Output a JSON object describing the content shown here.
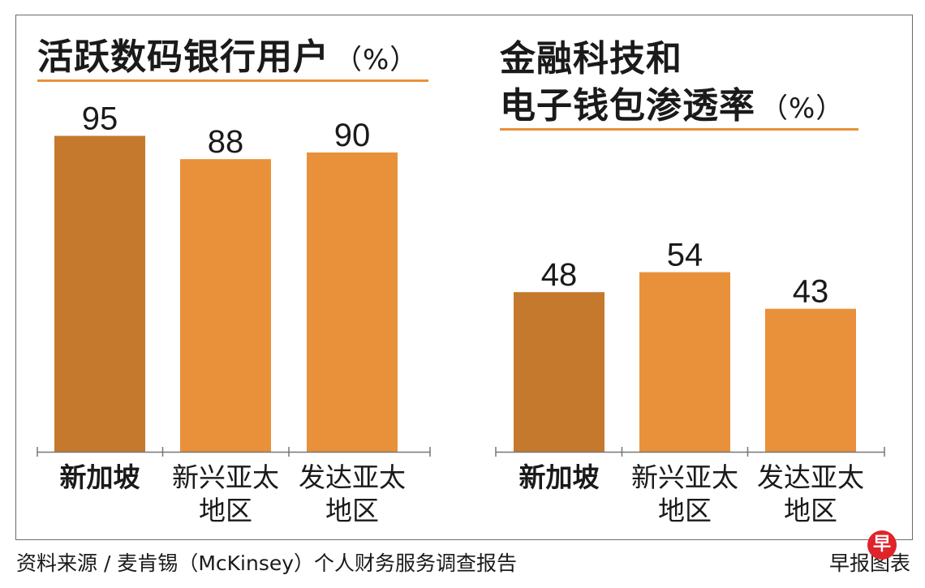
{
  "colors": {
    "singapore_bar": "#c4792c",
    "other_bar": "#e8913a",
    "underline": "#e8913a",
    "axis": "#777777",
    "logo": "#e0242b"
  },
  "chart_data": [
    {
      "type": "bar",
      "title": "活跃数码银行用户",
      "unit_label": "（%）",
      "categories": [
        "新加坡",
        "新兴亚太\n地区",
        "发达亚太\n地区"
      ],
      "values": [
        95,
        88,
        90
      ],
      "ylim": [
        0,
        100
      ],
      "grid": false,
      "legend": "none"
    },
    {
      "type": "bar",
      "title_line1": "金融科技和",
      "title_line2": "电子钱包渗透率",
      "unit_label": "（%）",
      "categories": [
        "新加坡",
        "新兴亚太\n地区",
        "发达亚太\n地区"
      ],
      "values": [
        48,
        54,
        43
      ],
      "ylim": [
        0,
        100
      ],
      "grid": false,
      "legend": "none"
    }
  ],
  "footer": {
    "source": "资料来源 / 麦肯锡（McKinsey）个人财务服务调查报告",
    "credit": "早报图表",
    "logo_char": "早"
  }
}
